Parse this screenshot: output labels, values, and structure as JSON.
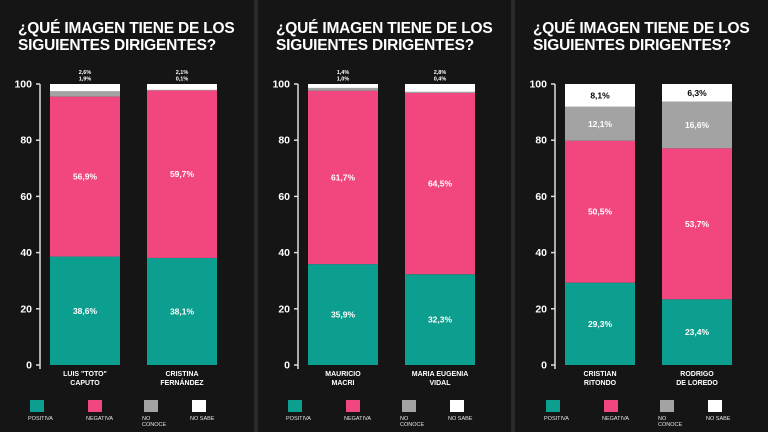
{
  "legend": {
    "positiva": "POSITIVA",
    "negativa": "NEGATIVA",
    "no_conoce": "NO CONOCE",
    "no_sabe": "NO SABE"
  },
  "colors": {
    "positiva": "#0c9e8e",
    "negativa": "#f2467e",
    "no_conoce": "#a3a3a3",
    "no_sabe": "#ffffff",
    "background": "#151515"
  },
  "chart_data": [
    {
      "type": "bar",
      "stacked": true,
      "title": "¿QUÉ IMAGEN TIENE DE LOS SIGUIENTES DIRIGENTES?",
      "ylim": [
        0,
        100
      ],
      "yticks": [
        "0",
        "20",
        "40",
        "60",
        "80",
        "100"
      ],
      "categories": [
        "LUIS \"TOTO\" CAPUTO",
        "CRISTINA FERNÁNDEZ"
      ],
      "category_lines": [
        [
          "LUIS \"TOTO\"",
          "CAPUTO"
        ],
        [
          "CRISTINA",
          "FERNÁNDEZ"
        ]
      ],
      "series": [
        {
          "name": "POSITIVA",
          "values": [
            38.6,
            38.1
          ],
          "labels": [
            "38,6%",
            "38,1%"
          ]
        },
        {
          "name": "NEGATIVA",
          "values": [
            56.9,
            59.7
          ],
          "labels": [
            "56,9%",
            "59,7%"
          ]
        },
        {
          "name": "NO CONOCE",
          "values": [
            1.9,
            0.1
          ],
          "labels": [
            "1,9%",
            "0,1%"
          ]
        },
        {
          "name": "NO SABE",
          "values": [
            2.6,
            2.1
          ],
          "labels": [
            "2,6%",
            "2,1%"
          ]
        }
      ]
    },
    {
      "type": "bar",
      "stacked": true,
      "title": "¿QUÉ IMAGEN TIENE DE LOS SIGUIENTES DIRIGENTES?",
      "ylim": [
        0,
        100
      ],
      "yticks": [
        "0",
        "20",
        "40",
        "60",
        "80",
        "100"
      ],
      "categories": [
        "MAURICIO MACRI",
        "MARIA EUGENIA VIDAL"
      ],
      "category_lines": [
        [
          "MAURICIO",
          "MACRI"
        ],
        [
          "MARIA EUGENIA",
          "VIDAL"
        ]
      ],
      "series": [
        {
          "name": "POSITIVA",
          "values": [
            35.9,
            32.3
          ],
          "labels": [
            "35,9%",
            "32,3%"
          ]
        },
        {
          "name": "NEGATIVA",
          "values": [
            61.7,
            64.5
          ],
          "labels": [
            "61,7%",
            "64,5%"
          ]
        },
        {
          "name": "NO CONOCE",
          "values": [
            1.0,
            0.4
          ],
          "labels": [
            "1,0%",
            "0,4%"
          ]
        },
        {
          "name": "NO SABE",
          "values": [
            1.4,
            2.8
          ],
          "labels": [
            "1,4%",
            "2,8%"
          ]
        }
      ]
    },
    {
      "type": "bar",
      "stacked": true,
      "title": "¿QUÉ IMAGEN TIENE DE LOS SIGUIENTES DIRIGENTES?",
      "ylim": [
        0,
        100
      ],
      "yticks": [
        "0",
        "20",
        "40",
        "60",
        "80",
        "100"
      ],
      "categories": [
        "CRISTIAN RITONDO",
        "RODRIGO DE LOREDO"
      ],
      "category_lines": [
        [
          "CRISTIAN",
          "RITONDO"
        ],
        [
          "RODRIGO",
          "DE LOREDO"
        ]
      ],
      "series": [
        {
          "name": "POSITIVA",
          "values": [
            29.3,
            23.4
          ],
          "labels": [
            "29,3%",
            "23,4%"
          ]
        },
        {
          "name": "NEGATIVA",
          "values": [
            50.5,
            53.7
          ],
          "labels": [
            "50,5%",
            "53,7%"
          ]
        },
        {
          "name": "NO CONOCE",
          "values": [
            12.1,
            16.6
          ],
          "labels": [
            "12,1%",
            "16,6%"
          ]
        },
        {
          "name": "NO SABE",
          "values": [
            8.1,
            6.3
          ],
          "labels": [
            "8,1%",
            "6,3%"
          ]
        }
      ]
    }
  ]
}
